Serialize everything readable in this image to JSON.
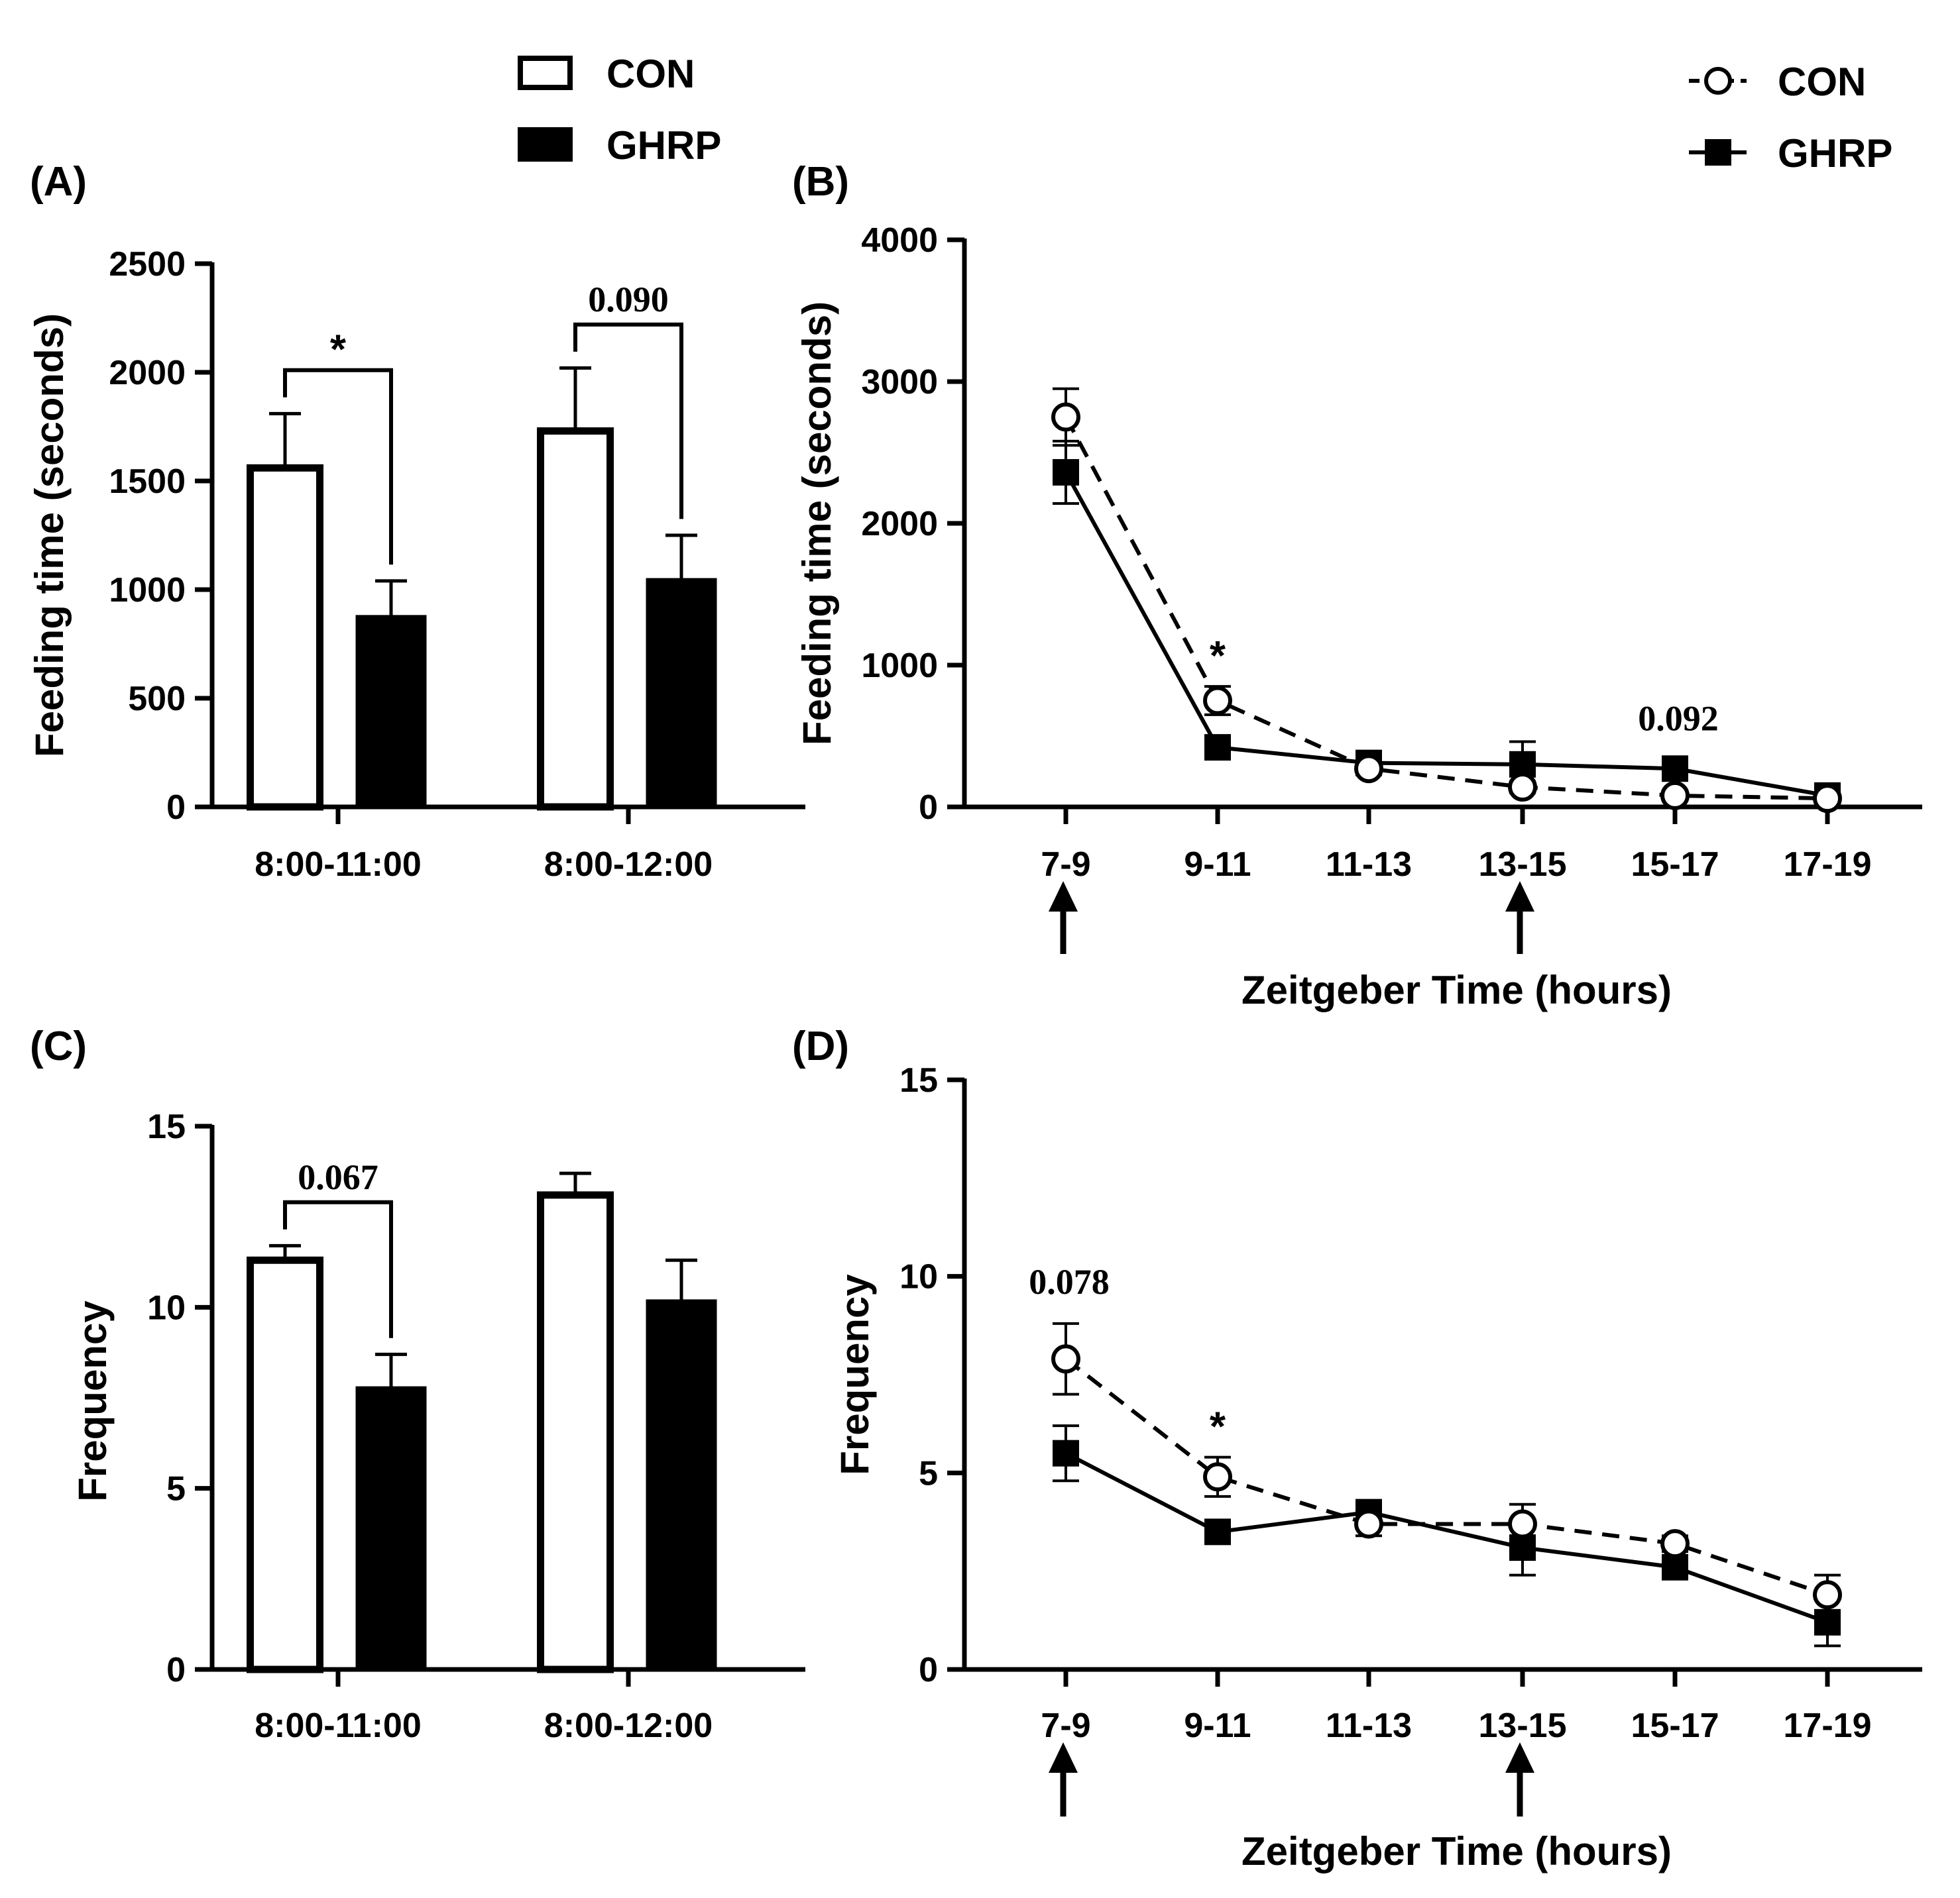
{
  "chart_data": [
    {
      "panel": "(A)",
      "type": "bar",
      "ylabel": "Feeding time (seconds)",
      "ylim": [
        0,
        2500
      ],
      "yticks": [
        0,
        500,
        1000,
        1500,
        2000,
        2500
      ],
      "categories": [
        "8:00-11:00",
        "8:00-12:00"
      ],
      "series": [
        {
          "name": "CON",
          "values": [
            1560,
            1730
          ],
          "errors": [
            250,
            290
          ]
        },
        {
          "name": "GHRP",
          "values": [
            880,
            1050
          ],
          "errors": [
            160,
            200
          ]
        }
      ],
      "annotations": [
        {
          "category": 0,
          "text": "*"
        },
        {
          "category": 1,
          "text": "0.090"
        }
      ]
    },
    {
      "panel": "(B)",
      "type": "line",
      "xlabel": "Zeitgeber Time (hours)",
      "ylabel": "Feeding time (seconds)",
      "ylim": [
        0,
        4000
      ],
      "yticks": [
        0,
        1000,
        2000,
        3000,
        4000
      ],
      "categories": [
        "7-9",
        "9-11",
        "11-13",
        "13-15",
        "15-17",
        "17-19"
      ],
      "series": [
        {
          "name": "CON",
          "values": [
            2750,
            750,
            270,
            140,
            80,
            60
          ],
          "errors": [
            200,
            100,
            40,
            40,
            20,
            20
          ]
        },
        {
          "name": "GHRP",
          "values": [
            2360,
            420,
            310,
            300,
            270,
            80
          ],
          "errors": [
            220,
            50,
            40,
            160,
            60,
            20
          ]
        }
      ],
      "arrows_at": [
        "7-9",
        "13-15"
      ],
      "annotations": [
        {
          "category": 1,
          "text": "*"
        },
        {
          "category": 4,
          "text": "0.092"
        }
      ]
    },
    {
      "panel": "(C)",
      "type": "bar",
      "ylabel": "Frequency",
      "ylim": [
        0,
        15
      ],
      "yticks": [
        0,
        5,
        10,
        15
      ],
      "categories": [
        "8:00-11:00",
        "8:00-12:00"
      ],
      "series": [
        {
          "name": "CON",
          "values": [
            11.3,
            13.1
          ],
          "errors": [
            0.4,
            0.6
          ]
        },
        {
          "name": "GHRP",
          "values": [
            7.8,
            10.2
          ],
          "errors": [
            0.9,
            1.1
          ]
        }
      ],
      "annotations": [
        {
          "category": 0,
          "text": "0.067"
        }
      ]
    },
    {
      "panel": "(D)",
      "type": "line",
      "xlabel": "Zeitgeber Time (hours)",
      "ylabel": "Frequency",
      "ylim": [
        0,
        15
      ],
      "yticks": [
        0,
        5,
        10,
        15
      ],
      "categories": [
        "7-9",
        "9-11",
        "11-13",
        "13-15",
        "15-17",
        "17-19"
      ],
      "series": [
        {
          "name": "CON",
          "values": [
            7.9,
            4.9,
            3.7,
            3.7,
            3.2,
            1.9
          ],
          "errors": [
            0.9,
            0.5,
            0.3,
            0.5,
            0.2,
            0.5
          ]
        },
        {
          "name": "GHRP",
          "values": [
            5.5,
            3.5,
            4.0,
            3.1,
            2.6,
            1.2
          ],
          "errors": [
            0.7,
            0.2,
            0.3,
            0.7,
            0.2,
            0.6
          ]
        }
      ],
      "arrows_at": [
        "7-9",
        "13-15"
      ],
      "annotations": [
        {
          "category": 0,
          "text": "0.078"
        },
        {
          "category": 1,
          "text": "*"
        }
      ]
    }
  ],
  "legends": {
    "bars": [
      {
        "label": "CON",
        "fill": "#ffffff"
      },
      {
        "label": "GHRP",
        "fill": "#000000"
      }
    ],
    "lines": [
      {
        "label": "CON",
        "marker": "open-circle",
        "dash": "dashed"
      },
      {
        "label": "GHRP",
        "marker": "filled-square",
        "dash": "solid"
      }
    ]
  },
  "colors": {
    "ink": "#000000",
    "paper": "#ffffff"
  }
}
